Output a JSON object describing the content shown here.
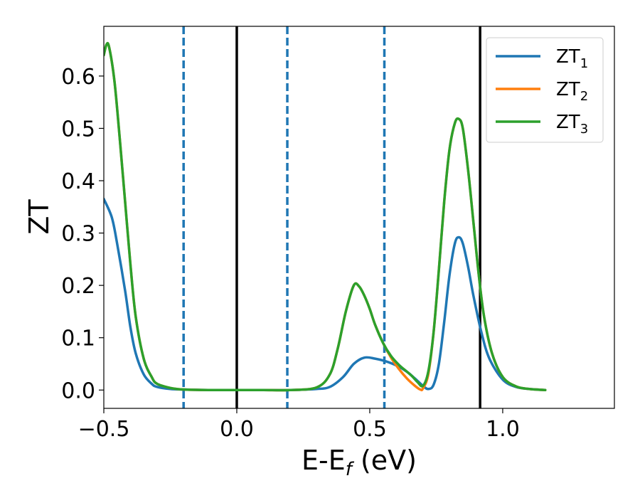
{
  "chart_data": {
    "type": "line",
    "xlabel_main": "E-E",
    "xlabel_sub": "f",
    "xlabel_unit": " (eV)",
    "ylabel": "ZT",
    "xlim": [
      -0.5,
      1.42
    ],
    "ylim": [
      -0.035,
      0.695
    ],
    "xticks": [
      -0.5,
      0.0,
      0.5,
      1.0
    ],
    "xtick_labels": [
      "−0.5",
      "0.0",
      "0.5",
      "1.0"
    ],
    "yticks": [
      0.0,
      0.1,
      0.2,
      0.3,
      0.4,
      0.5,
      0.6
    ],
    "ytick_labels": [
      "0.0",
      "0.1",
      "0.2",
      "0.3",
      "0.4",
      "0.5",
      "0.6"
    ],
    "grid": false,
    "legend_position": "top-right",
    "vlines_solid": [
      0.0,
      0.915
    ],
    "vlines_dashed": [
      -0.2,
      0.19,
      0.555
    ],
    "vline_solid_color": "#000000",
    "vline_dashed_color": "#1f77b4",
    "series": [
      {
        "name_main": "ZT",
        "name_sub": "1",
        "color": "#1f77b4",
        "x": [
          -0.5,
          -0.47,
          -0.45,
          -0.42,
          -0.4,
          -0.38,
          -0.35,
          -0.32,
          -0.3,
          -0.25,
          -0.2,
          -0.1,
          0.0,
          0.1,
          0.2,
          0.3,
          0.35,
          0.4,
          0.44,
          0.48,
          0.52,
          0.56,
          0.6,
          0.64,
          0.67,
          0.7,
          0.72,
          0.74,
          0.76,
          0.78,
          0.8,
          0.82,
          0.835,
          0.85,
          0.87,
          0.89,
          0.92,
          0.95,
          1.0,
          1.05,
          1.1,
          1.16
        ],
        "y": [
          0.365,
          0.33,
          0.28,
          0.19,
          0.12,
          0.07,
          0.03,
          0.012,
          0.006,
          0.002,
          0.001,
          0.0,
          0.0,
          0.0,
          0.0,
          0.002,
          0.006,
          0.025,
          0.05,
          0.062,
          0.06,
          0.055,
          0.047,
          0.035,
          0.022,
          0.008,
          0.002,
          0.01,
          0.05,
          0.13,
          0.22,
          0.28,
          0.292,
          0.28,
          0.235,
          0.18,
          0.11,
          0.06,
          0.02,
          0.006,
          0.002,
          0.0
        ]
      },
      {
        "name_main": "ZT",
        "name_sub": "2",
        "color": "#ff7f0e",
        "x": [
          -0.5,
          -0.49,
          -0.48,
          -0.46,
          -0.44,
          -0.42,
          -0.4,
          -0.38,
          -0.35,
          -0.32,
          -0.3,
          -0.25,
          -0.2,
          -0.1,
          0.0,
          0.1,
          0.2,
          0.3,
          0.35,
          0.38,
          0.41,
          0.44,
          0.46,
          0.48,
          0.5,
          0.52,
          0.55,
          0.58,
          0.61,
          0.64,
          0.67,
          0.69,
          0.7,
          0.72,
          0.74,
          0.76,
          0.78,
          0.8,
          0.82,
          0.835,
          0.85,
          0.87,
          0.89,
          0.91,
          0.93,
          0.96,
          1.0,
          1.05,
          1.1,
          1.16
        ],
        "y": [
          0.64,
          0.66,
          0.655,
          0.59,
          0.48,
          0.36,
          0.24,
          0.14,
          0.06,
          0.025,
          0.012,
          0.004,
          0.001,
          0.0,
          0.0,
          0.0,
          0.0,
          0.005,
          0.03,
          0.08,
          0.15,
          0.2,
          0.198,
          0.18,
          0.155,
          0.125,
          0.09,
          0.062,
          0.04,
          0.022,
          0.008,
          0.001,
          0.003,
          0.03,
          0.11,
          0.23,
          0.36,
          0.46,
          0.51,
          0.518,
          0.5,
          0.42,
          0.32,
          0.22,
          0.14,
          0.07,
          0.025,
          0.007,
          0.002,
          0.0
        ]
      },
      {
        "name_main": "ZT",
        "name_sub": "3",
        "color": "#2ca02c",
        "x": [
          -0.5,
          -0.49,
          -0.48,
          -0.46,
          -0.44,
          -0.42,
          -0.4,
          -0.38,
          -0.35,
          -0.32,
          -0.3,
          -0.25,
          -0.2,
          -0.1,
          0.0,
          0.1,
          0.2,
          0.3,
          0.35,
          0.38,
          0.41,
          0.44,
          0.46,
          0.48,
          0.5,
          0.52,
          0.55,
          0.58,
          0.61,
          0.64,
          0.66,
          0.68,
          0.7,
          0.72,
          0.74,
          0.76,
          0.78,
          0.8,
          0.82,
          0.835,
          0.85,
          0.87,
          0.89,
          0.91,
          0.93,
          0.96,
          1.0,
          1.05,
          1.1,
          1.16
        ],
        "y": [
          0.64,
          0.66,
          0.655,
          0.59,
          0.48,
          0.36,
          0.24,
          0.14,
          0.06,
          0.025,
          0.012,
          0.004,
          0.001,
          0.0,
          0.0,
          0.0,
          0.0,
          0.005,
          0.03,
          0.08,
          0.15,
          0.2,
          0.198,
          0.18,
          0.155,
          0.125,
          0.09,
          0.065,
          0.048,
          0.035,
          0.026,
          0.015,
          0.008,
          0.035,
          0.11,
          0.23,
          0.36,
          0.46,
          0.51,
          0.518,
          0.5,
          0.42,
          0.32,
          0.22,
          0.14,
          0.07,
          0.025,
          0.007,
          0.002,
          0.0
        ]
      }
    ]
  }
}
